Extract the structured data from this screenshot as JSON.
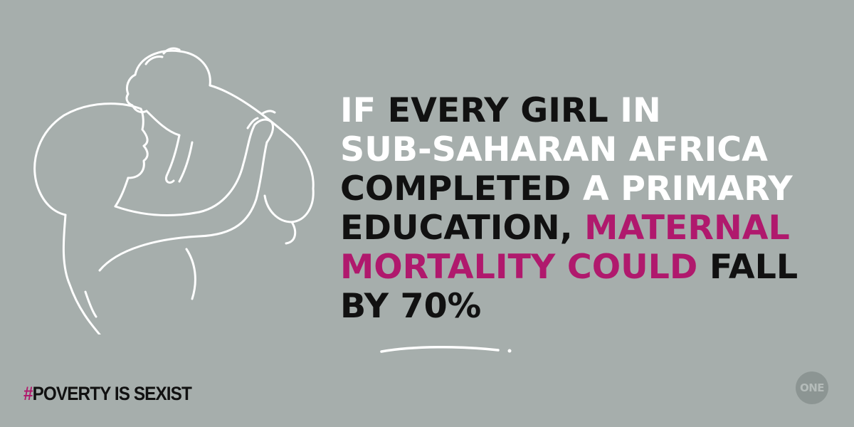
{
  "headline": {
    "line1": [
      {
        "text": "IF ",
        "tone": "w"
      },
      {
        "text": "EVERY GIRL",
        "tone": "b"
      },
      {
        "text": " IN",
        "tone": "w"
      }
    ],
    "line2": [
      {
        "text": "SUB-SAHARAN AFRICA",
        "tone": "w"
      }
    ],
    "line3": [
      {
        "text": "COMPLETED",
        "tone": "b"
      },
      {
        "text": " A PRIMARY",
        "tone": "w"
      }
    ],
    "line4": [
      {
        "text": "EDUCATION, ",
        "tone": "b"
      },
      {
        "text": "MATERNAL",
        "tone": "m"
      }
    ],
    "line5": [
      {
        "text": "MORTALITY COULD",
        "tone": "m"
      },
      {
        "text": " FALL",
        "tone": "b"
      }
    ],
    "line6": [
      {
        "text": "BY 70%",
        "tone": "b"
      }
    ]
  },
  "hashtag": {
    "mark": "#",
    "text": "POVERTY IS SEXIST"
  },
  "logo": {
    "text": "ONE"
  },
  "illustration": {
    "icon": "mother-lifting-baby-line-art-icon"
  },
  "colors": {
    "background": "#a6aeac",
    "white_text": "#ffffff",
    "black_text": "#111111",
    "accent": "#b0196d",
    "logo_circle": "#8c9593"
  }
}
